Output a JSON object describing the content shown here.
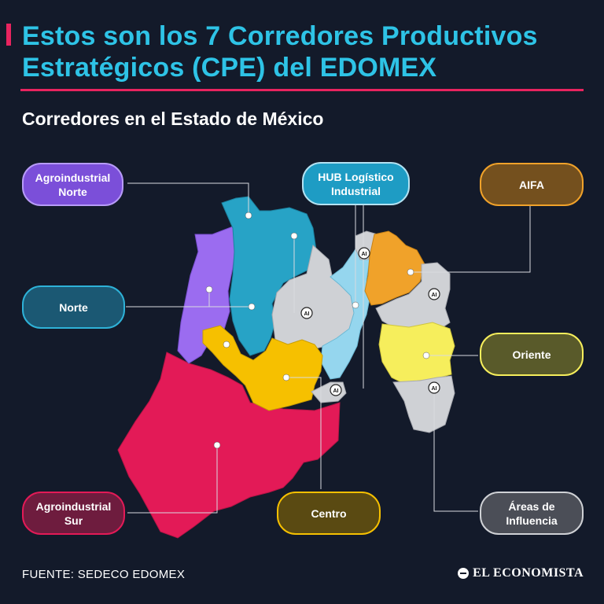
{
  "header": {
    "title": "Estos son los 7 Corredores Productivos Estratégicos (CPE) del EDOMEX",
    "subtitle": "Corredores en el Estado de México"
  },
  "map": {
    "airport_marker_label": "AI",
    "colors": {
      "background": "#131a2a",
      "title": "#2ec3e6",
      "accent": "#e8245f",
      "agroindustrial_norte": "#9b6cf0",
      "norte": "#27a3c6",
      "hub_logistico": "#95d6ee",
      "aifa": "#f0a22a",
      "oriente": "#f6ee5c",
      "centro": "#f6c000",
      "agroindustrial_sur": "#e31a57",
      "areas_influencia": "#cfd1d5"
    },
    "legend": {
      "agroindustrial_norte": "Agroindustrial\nNorte",
      "norte": "Norte",
      "hub_logistico": "HUB Logístico\nIndustrial",
      "aifa": "AIFA",
      "oriente": "Oriente",
      "agroindustrial_sur": "Agroindustrial\nSur",
      "centro": "Centro",
      "areas_influencia": "Áreas de\nInfluencia"
    }
  },
  "footer": {
    "source": "FUENTE: SEDECO EDOMEX",
    "brand": "EL ECONOMISTA"
  }
}
